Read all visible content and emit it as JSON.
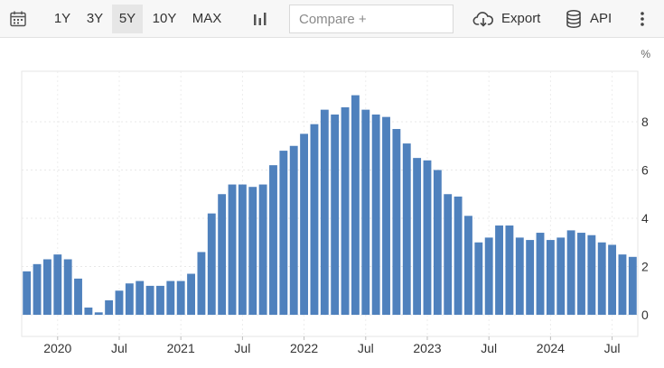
{
  "toolbar": {
    "ranges": [
      "1Y",
      "3Y",
      "5Y",
      "10Y",
      "MAX"
    ],
    "active_range": "5Y",
    "compare_placeholder": "Compare +",
    "export_label": "Export",
    "api_label": "API",
    "icons": [
      "calendar-icon",
      "bar-chart-icon",
      "cloud-download-icon",
      "database-icon",
      "more-vertical-icon"
    ]
  },
  "chart_data": {
    "type": "bar",
    "title": "",
    "xlabel": "",
    "ylabel": "%",
    "ylim": [
      -1,
      9.8
    ],
    "yticks": [
      0,
      2,
      4,
      6,
      8
    ],
    "grid": true,
    "color": "#4f81bd",
    "x_tick_labels": [
      {
        "label": "2020",
        "month": "2020-01"
      },
      {
        "label": "Jul",
        "month": "2020-07"
      },
      {
        "label": "2021",
        "month": "2021-01"
      },
      {
        "label": "Jul",
        "month": "2021-07"
      },
      {
        "label": "2022",
        "month": "2022-01"
      },
      {
        "label": "Jul",
        "month": "2022-07"
      },
      {
        "label": "2023",
        "month": "2023-01"
      },
      {
        "label": "Jul",
        "month": "2023-07"
      },
      {
        "label": "2024",
        "month": "2024-01"
      },
      {
        "label": "Jul",
        "month": "2024-07"
      }
    ],
    "categories": [
      "2019-10",
      "2019-11",
      "2019-12",
      "2020-01",
      "2020-02",
      "2020-03",
      "2020-04",
      "2020-05",
      "2020-06",
      "2020-07",
      "2020-08",
      "2020-09",
      "2020-10",
      "2020-11",
      "2020-12",
      "2021-01",
      "2021-02",
      "2021-03",
      "2021-04",
      "2021-05",
      "2021-06",
      "2021-07",
      "2021-08",
      "2021-09",
      "2021-10",
      "2021-11",
      "2021-12",
      "2022-01",
      "2022-02",
      "2022-03",
      "2022-04",
      "2022-05",
      "2022-06",
      "2022-07",
      "2022-08",
      "2022-09",
      "2022-10",
      "2022-11",
      "2022-12",
      "2023-01",
      "2023-02",
      "2023-03",
      "2023-04",
      "2023-05",
      "2023-06",
      "2023-07",
      "2023-08",
      "2023-09",
      "2023-10",
      "2023-11",
      "2023-12",
      "2024-01",
      "2024-02",
      "2024-03",
      "2024-04",
      "2024-05",
      "2024-06",
      "2024-07",
      "2024-08",
      "2024-09"
    ],
    "values": [
      1.8,
      2.1,
      2.3,
      2.5,
      2.3,
      1.5,
      0.3,
      0.1,
      0.6,
      1.0,
      1.3,
      1.4,
      1.2,
      1.2,
      1.4,
      1.4,
      1.7,
      2.6,
      4.2,
      5.0,
      5.4,
      5.4,
      5.3,
      5.4,
      6.2,
      6.8,
      7.0,
      7.5,
      7.9,
      8.5,
      8.3,
      8.6,
      9.1,
      8.5,
      8.3,
      8.2,
      7.7,
      7.1,
      6.5,
      6.4,
      6.0,
      5.0,
      4.9,
      4.1,
      3.0,
      3.2,
      3.7,
      3.7,
      3.2,
      3.1,
      3.4,
      3.1,
      3.2,
      3.5,
      3.4,
      3.3,
      3.0,
      2.9,
      2.5,
      2.4
    ]
  }
}
